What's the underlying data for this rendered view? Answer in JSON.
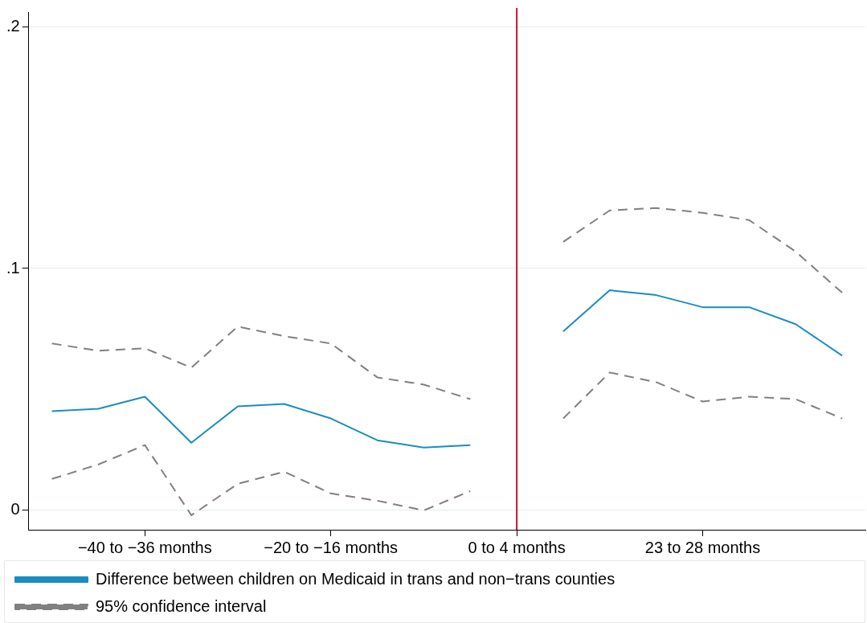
{
  "chart_data": {
    "type": "line",
    "categories": [
      null,
      null,
      "−40 to −36 months",
      null,
      null,
      null,
      "−20 to −16 months",
      null,
      null,
      null,
      "0 to 4 months",
      null,
      null,
      null,
      "23 to 28 months",
      null,
      null,
      null
    ],
    "series": [
      {
        "name": "Difference between children on Medicaid in trans and non−trans counties",
        "color": "#1a8cc2",
        "line_style": "solid",
        "values": [
          0.041,
          0.042,
          0.047,
          0.028,
          0.043,
          0.044,
          0.038,
          0.029,
          0.026,
          0.027,
          null,
          0.074,
          0.091,
          0.089,
          0.084,
          0.084,
          0.077,
          0.064
        ]
      },
      {
        "name": "95% confidence interval",
        "color": "#808080",
        "line_style": "dashed",
        "values": [
          0.069,
          0.066,
          0.067,
          0.059,
          0.076,
          0.072,
          0.069,
          0.055,
          0.052,
          0.046,
          null,
          0.111,
          0.124,
          0.125,
          0.123,
          0.12,
          0.107,
          0.09
        ]
      },
      {
        "color": "#808080",
        "line_style": "dashed",
        "values": [
          0.013,
          0.019,
          0.027,
          -0.002,
          0.011,
          0.016,
          0.007,
          0.004,
          0.0,
          0.008,
          null,
          0.038,
          0.057,
          0.053,
          0.045,
          0.047,
          0.046,
          0.038
        ]
      }
    ],
    "ylim": [
      -0.008,
      0.206
    ],
    "yticks": [
      {
        "value": 0,
        "label": "0"
      },
      {
        "value": 0.1,
        "label": ".1"
      },
      {
        "value": 0.2,
        "label": ".2"
      }
    ],
    "ref_lines": [
      {
        "axis": "x",
        "value": "0 to 4 months",
        "color": "#c8102e"
      }
    ],
    "grid": "y",
    "legend": "bottom",
    "marker": "none"
  }
}
